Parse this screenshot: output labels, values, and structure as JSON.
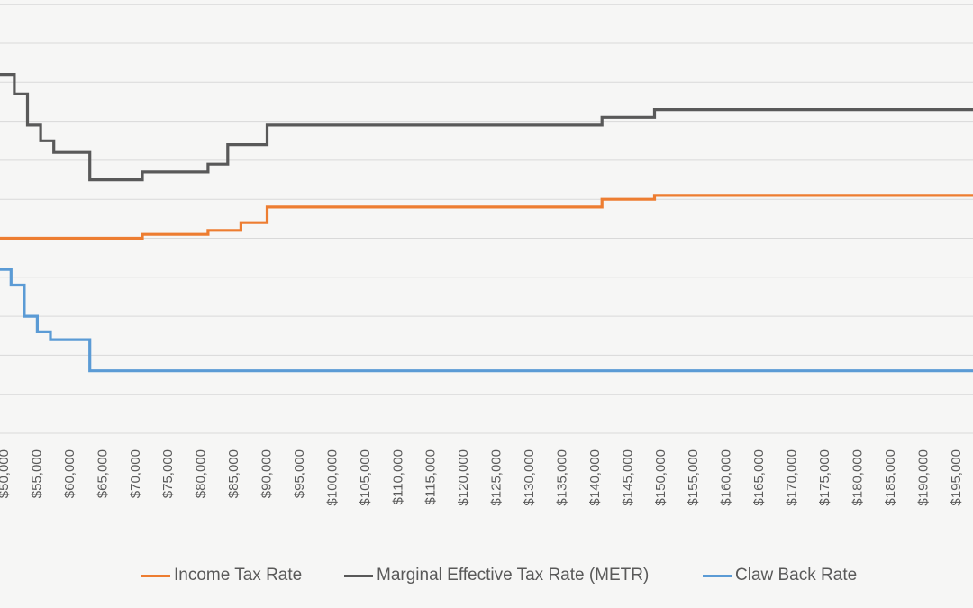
{
  "chart_data": {
    "type": "line",
    "title": "",
    "xlabel": "",
    "ylabel": "",
    "grid": true,
    "legend_position": "bottom",
    "x_tick_labels": [
      "$50,000",
      "$55,000",
      "$60,000",
      "$65,000",
      "$70,000",
      "$75,000",
      "$80,000",
      "$85,000",
      "$90,000",
      "$95,000",
      "$100,000",
      "$105,000",
      "$110,000",
      "$115,000",
      "$120,000",
      "$125,000",
      "$130,000",
      "$135,000",
      "$140,000",
      "$145,000",
      "$150,000",
      "$155,000",
      "$160,000",
      "$165,000",
      "$170,000",
      "$175,000",
      "$180,000",
      "$185,000",
      "$190,000",
      "$195,000"
    ],
    "xlim": [
      50000,
      200000
    ],
    "series": [
      {
        "name": "Income Tax Rate",
        "color": "#ed7d31",
        "steps": [
          [
            49000,
            0.5
          ],
          [
            71000,
            0.51
          ],
          [
            81000,
            0.52
          ],
          [
            86000,
            0.54
          ],
          [
            90000,
            0.58
          ],
          [
            141000,
            0.6
          ],
          [
            149000,
            0.61
          ]
        ]
      },
      {
        "name": "Marginal Effective Tax Rate (METR)",
        "color": "#595959",
        "steps": [
          [
            49000,
            0.92
          ],
          [
            51500,
            0.87
          ],
          [
            53500,
            0.79
          ],
          [
            55500,
            0.75
          ],
          [
            57500,
            0.72
          ],
          [
            63000,
            0.65
          ],
          [
            71000,
            0.67
          ],
          [
            81000,
            0.69
          ],
          [
            84000,
            0.74
          ],
          [
            90000,
            0.79
          ],
          [
            141000,
            0.81
          ],
          [
            149000,
            0.83
          ]
        ]
      },
      {
        "name": "Claw Back Rate",
        "color": "#5b9bd5",
        "steps": [
          [
            49000,
            0.42
          ],
          [
            51000,
            0.38
          ],
          [
            53000,
            0.3
          ],
          [
            55000,
            0.26
          ],
          [
            57000,
            0.24
          ],
          [
            63000,
            0.16
          ]
        ]
      }
    ]
  }
}
